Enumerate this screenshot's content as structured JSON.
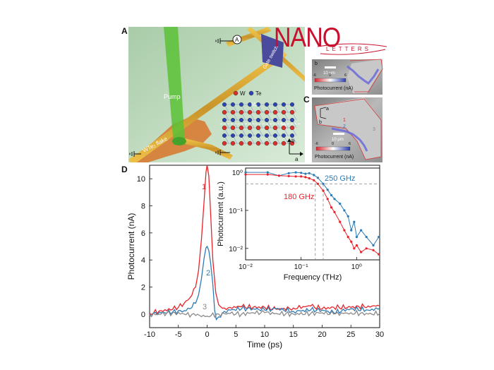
{
  "panels": {
    "a_label": "A",
    "c_label": "C",
    "d_label": "D"
  },
  "logo": {
    "main": "NANO",
    "sub": "LETTERS",
    "color": "#c8102e"
  },
  "schematic": {
    "pump_label": "Pump",
    "flake_label": "WTe₂ flake",
    "switch_label": "Gate switch",
    "ammeter_symbol": "A",
    "legend_w": "W",
    "legend_te": "Te",
    "mirror_a": "Mₐ",
    "mirror_b": "Mᵦ",
    "axis_a": "a",
    "axis_b": "b",
    "w_color": "#d9302a",
    "te_color": "#2c44b8"
  },
  "maps": {
    "top": {
      "scale": "10 μm",
      "ticks": [
        "-6",
        "0",
        "6"
      ],
      "cbar_label": "Photocurrent (nA)",
      "corner": "b"
    },
    "bottom": {
      "scale": "10 μm",
      "ticks": [
        "-6",
        "0",
        "6"
      ],
      "cbar_label": "Photocurrent (nA)",
      "corner_a": "a",
      "corner_b": "b",
      "markers": [
        "1",
        "2",
        "3"
      ]
    }
  },
  "chart_data": [
    {
      "type": "line",
      "xlabel": "Time (ps)",
      "ylabel": "Photocurrent (nA)",
      "xlim": [
        -10,
        30
      ],
      "ylim": [
        -1,
        11
      ],
      "xticks": [
        "-10",
        "-5",
        "0",
        "5",
        "10",
        "15",
        "20",
        "25",
        "30"
      ],
      "yticks": [
        "0",
        "2",
        "4",
        "6",
        "8",
        "10"
      ],
      "series": [
        {
          "name": "1",
          "color": "#e8242a",
          "x": [
            -10,
            -8,
            -6,
            -5,
            -4,
            -3,
            -2,
            -1.5,
            -1,
            -0.5,
            -0.2,
            0,
            0.3,
            0.6,
            1,
            1.5,
            2,
            3,
            4,
            6,
            8,
            10,
            12,
            15,
            18,
            20,
            22,
            25,
            28,
            30
          ],
          "y": [
            0.05,
            0.25,
            0.35,
            0.5,
            0.8,
            1.2,
            2.0,
            3.2,
            5.5,
            8.5,
            10.5,
            11.0,
            10.2,
            7.5,
            4.0,
            1.6,
            0.7,
            0.45,
            0.5,
            0.55,
            0.5,
            0.5,
            0.35,
            0.45,
            0.6,
            0.4,
            0.5,
            0.5,
            0.6,
            0.6
          ]
        },
        {
          "name": "2",
          "color": "#2d7bb5",
          "x": [
            -10,
            -8,
            -6,
            -4,
            -3,
            -2,
            -1.5,
            -1,
            -0.5,
            -0.2,
            0,
            0.3,
            0.6,
            1,
            1.3,
            1.6,
            2,
            3,
            4,
            6,
            8,
            10,
            12,
            15,
            18,
            20,
            22,
            25,
            28,
            30
          ],
          "y": [
            0.0,
            0.1,
            0.15,
            0.25,
            0.4,
            0.8,
            1.4,
            2.6,
            4.2,
            4.9,
            5.0,
            4.7,
            3.8,
            2.2,
            0.3,
            -0.4,
            -0.2,
            0.2,
            0.3,
            0.4,
            0.4,
            0.3,
            0.4,
            0.2,
            0.3,
            0.3,
            0.1,
            0.4,
            0.3,
            0.4
          ]
        },
        {
          "name": "3",
          "color": "#8a8a8a",
          "x": [
            -10,
            -8,
            -6,
            -4,
            -2,
            0,
            2,
            4,
            6,
            8,
            10,
            12,
            15,
            18,
            20,
            22,
            25,
            28,
            30
          ],
          "y": [
            -0.05,
            0.0,
            0.1,
            0.0,
            -0.1,
            -0.15,
            0.0,
            0.05,
            0.0,
            0.1,
            0.1,
            0.05,
            0.0,
            0.05,
            0.1,
            0.0,
            0.1,
            0.0,
            0.05
          ]
        }
      ]
    },
    {
      "type": "line",
      "xlabel": "Frequency (THz)",
      "ylabel": "Photocurrent (a.u.)",
      "xscale": "log",
      "yscale": "log",
      "xlim": [
        0.01,
        2.6
      ],
      "ylim": [
        0.005,
        1.3
      ],
      "xticks": [
        "10⁻²",
        "10⁻¹",
        "10⁰"
      ],
      "yticks": [
        "10⁰",
        "10⁻¹",
        "10⁻²"
      ],
      "hline": 0.5,
      "vlines": [
        0.18,
        0.25
      ],
      "annotations": [
        "250 GHz",
        "180 GHz"
      ],
      "series": [
        {
          "name": "",
          "color": "#2d7bb5",
          "x": [
            0.01,
            0.025,
            0.04,
            0.06,
            0.08,
            0.1,
            0.12,
            0.14,
            0.17,
            0.2,
            0.25,
            0.3,
            0.35,
            0.4,
            0.5,
            0.6,
            0.7,
            0.8,
            0.9,
            1.0,
            1.2,
            1.5,
            2.0,
            2.5
          ],
          "y": [
            1.0,
            1.0,
            0.82,
            0.95,
            1.0,
            0.97,
            0.92,
            0.95,
            0.85,
            0.72,
            0.5,
            0.35,
            0.25,
            0.2,
            0.15,
            0.1,
            0.07,
            0.03,
            0.05,
            0.02,
            0.03,
            0.02,
            0.012,
            0.02
          ]
        },
        {
          "name": "",
          "color": "#e8242a",
          "x": [
            0.01,
            0.025,
            0.04,
            0.06,
            0.08,
            0.1,
            0.12,
            0.14,
            0.17,
            0.2,
            0.25,
            0.3,
            0.35,
            0.4,
            0.5,
            0.6,
            0.7,
            0.8,
            0.9,
            1.0,
            1.2,
            1.5,
            2.0,
            2.5
          ],
          "y": [
            0.88,
            0.88,
            0.82,
            0.8,
            0.78,
            0.78,
            0.75,
            0.7,
            0.62,
            0.5,
            0.33,
            0.2,
            0.12,
            0.09,
            0.05,
            0.03,
            0.02,
            0.015,
            0.01,
            0.012,
            0.008,
            0.01,
            0.009,
            0.007
          ]
        }
      ]
    }
  ]
}
